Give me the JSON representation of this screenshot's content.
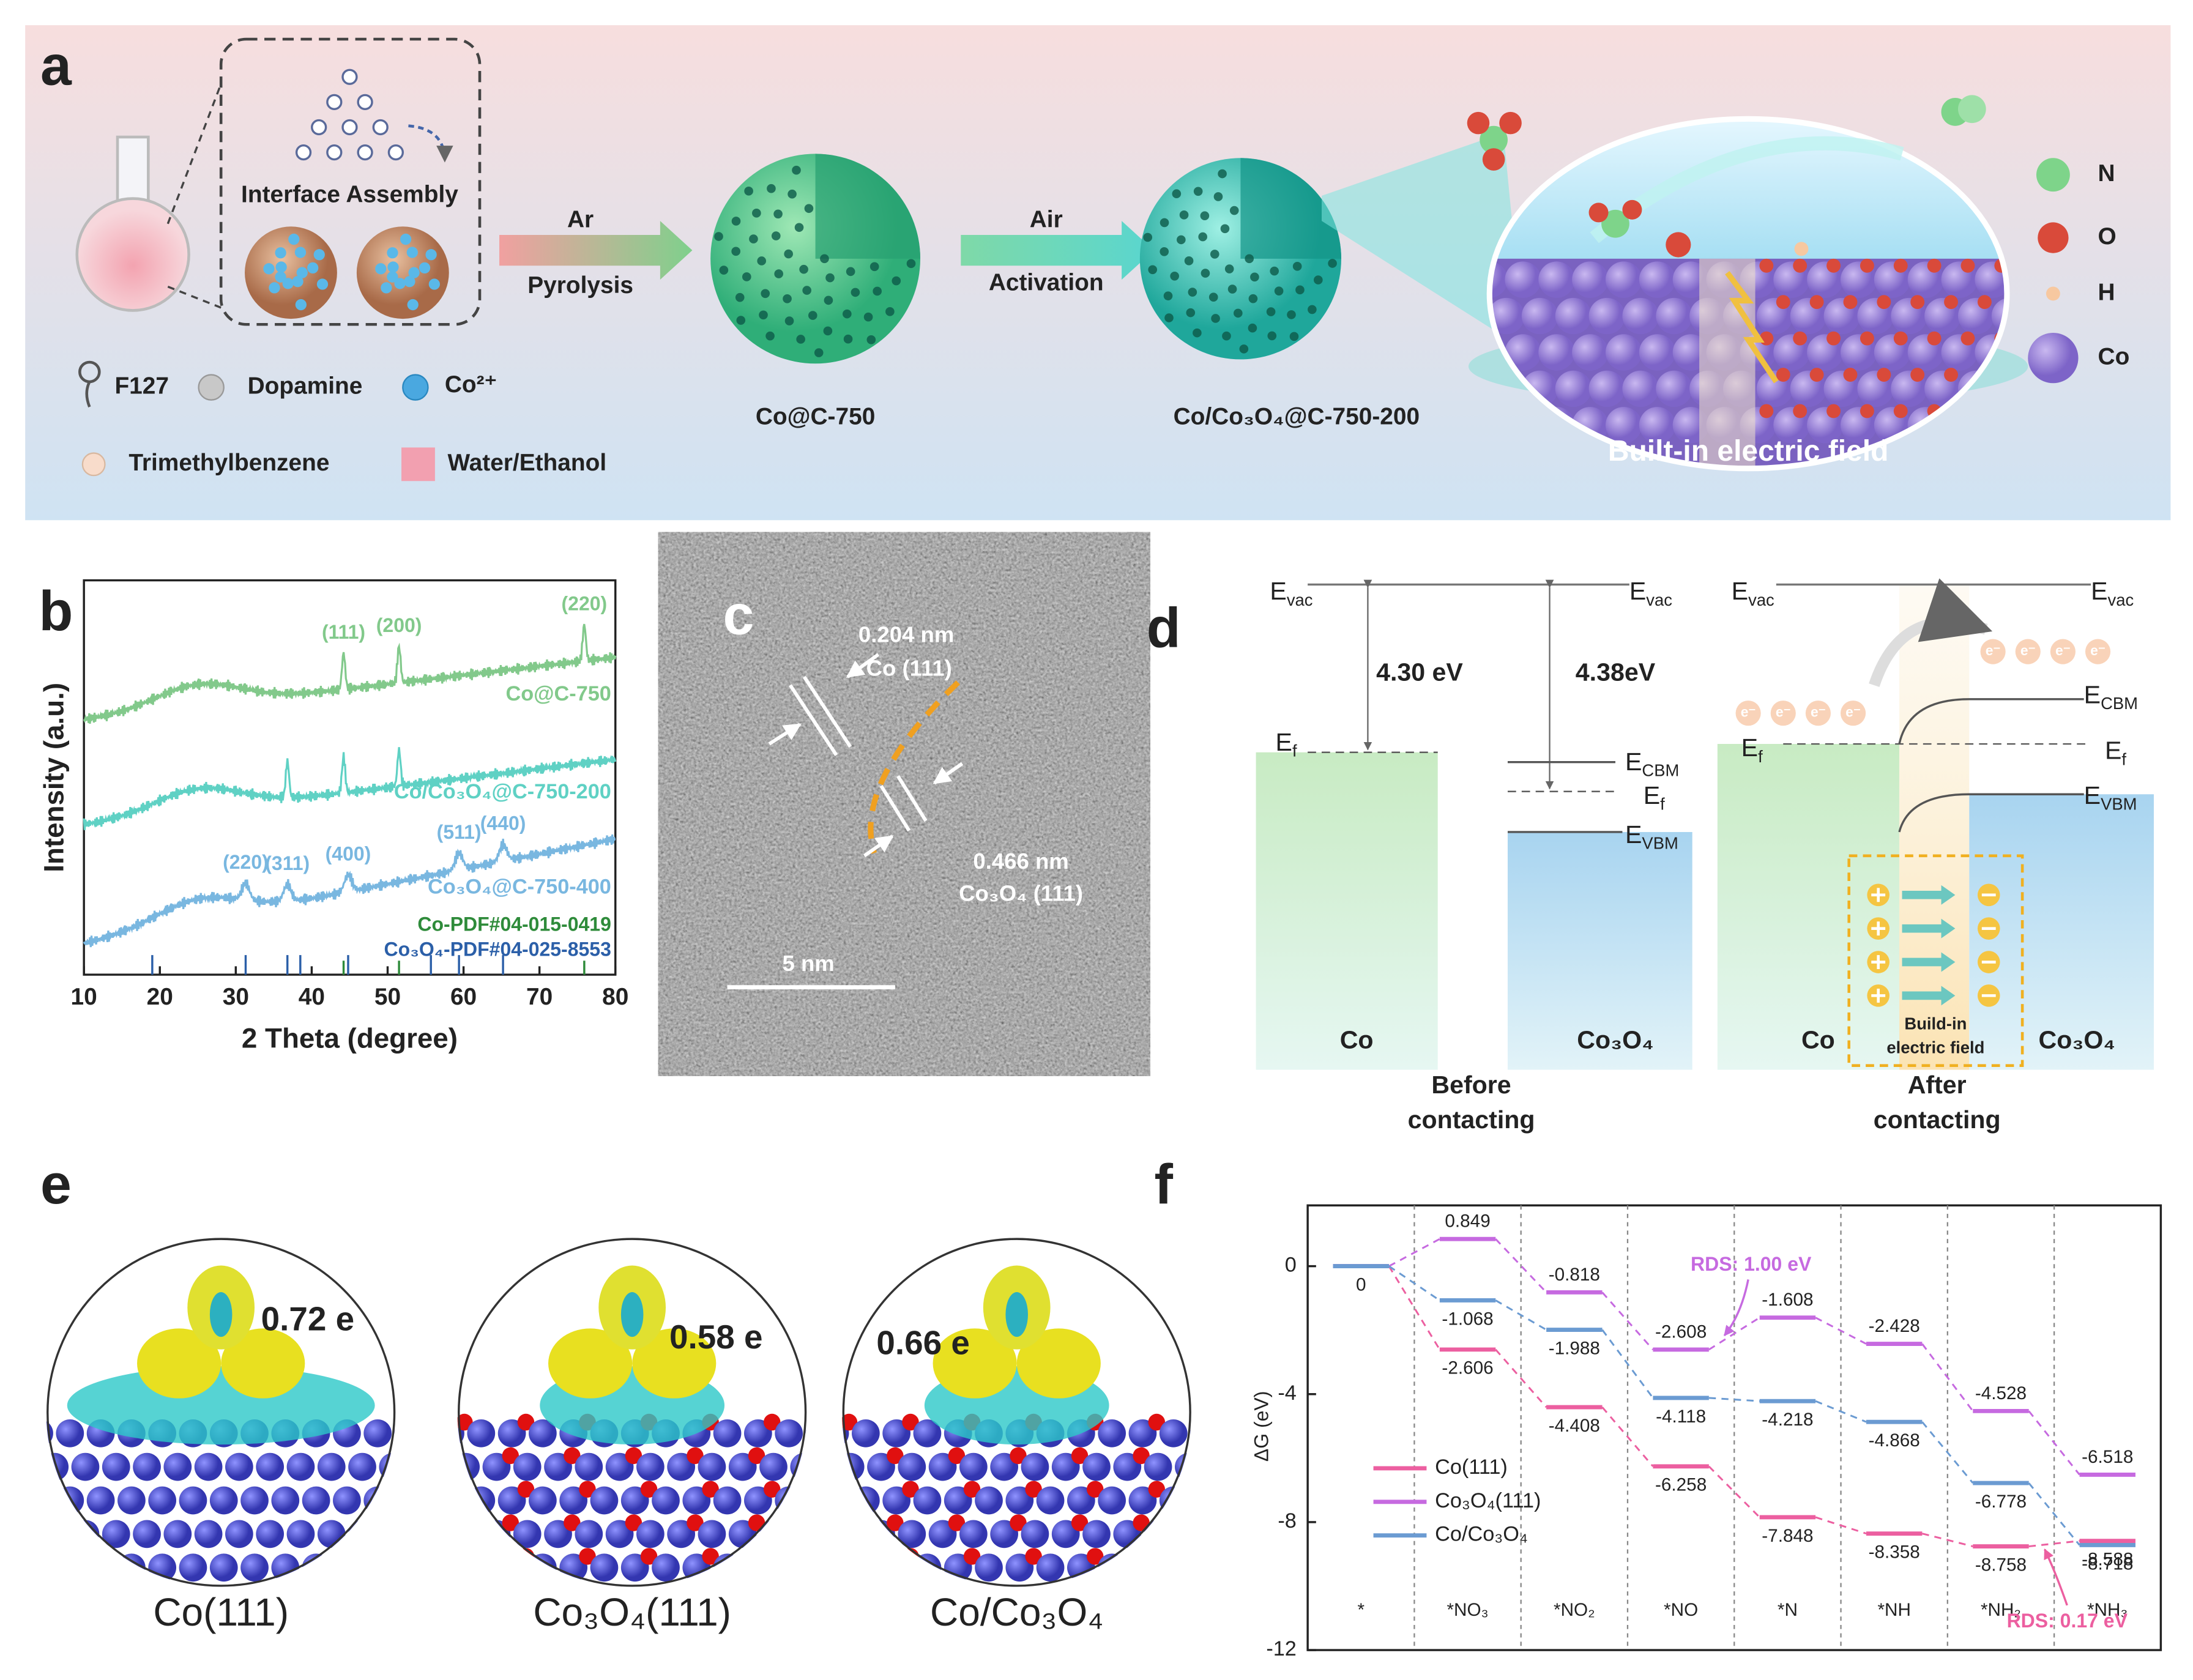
{
  "figure": {
    "panel_labels": [
      "a",
      "b",
      "c",
      "d",
      "e",
      "f"
    ],
    "a": {
      "assembly": "Interface Assembly",
      "step1": {
        "gas": "Ar",
        "process": "Pyrolysis"
      },
      "step2": {
        "gas": "Air",
        "process": "Activation"
      },
      "product1": "Co@C-750",
      "product2": "Co/Co₃O₄@C-750-200",
      "legend": [
        "F127",
        "Dopamine",
        "Co²⁺",
        "Trimethylbenzene",
        "Water/Ethanol"
      ],
      "field": "Built-in electric field",
      "atoms": [
        "N",
        "O",
        "H",
        "Co"
      ]
    },
    "c": {
      "co_spacing": "0.204 nm",
      "co_plane": "Co (111)",
      "oxide_spacing": "0.466 nm",
      "oxide_plane": "Co₃O₄ (111)",
      "scale": "5 nm"
    },
    "d": {
      "symbol": "E",
      "levels": {
        "vac": "vac",
        "f": "f",
        "cbm": "CBM",
        "vbm": "VBM"
      },
      "work_function_co": "4.30 eV",
      "work_function_oxide": "4.38eV",
      "metal": "Co",
      "oxide": "Co₃O₄",
      "electron": "e⁻",
      "before": [
        "Before",
        "contacting"
      ],
      "after": [
        "After",
        "contacting"
      ],
      "field": [
        "Build-in",
        "electric field"
      ]
    },
    "e": {
      "structures": [
        {
          "name": "Co(111)",
          "charge": "0.72 e"
        },
        {
          "name": "Co₃O₄(111)",
          "charge": "0.58 e"
        },
        {
          "name": "Co/Co₃O₄",
          "charge": "0.66 e"
        }
      ]
    }
  },
  "chart_data": [
    {
      "type": "line",
      "xlabel": "2 Theta (degree)",
      "ylabel": "Intensity (a.u.)",
      "xlim": [
        10,
        80
      ],
      "xticks": [
        10,
        20,
        30,
        40,
        50,
        60,
        70,
        80
      ],
      "series": [
        {
          "name": "Co@C-750",
          "color": "#82c98b",
          "peaks": [
            44.2,
            51.5,
            75.9
          ],
          "peak_labels": [
            "(111)",
            "(200)",
            "(220)"
          ]
        },
        {
          "name": "Co/Co₃O₄@C-750-200",
          "color": "#5fd1c4",
          "peaks": [
            44.2,
            51.5,
            36.8
          ]
        },
        {
          "name": "Co₃O₄@C-750-400",
          "color": "#79b7e0",
          "peaks": [
            31.3,
            36.8,
            44.8,
            59.4,
            65.2
          ],
          "peak_labels": [
            "(220)",
            "(311)",
            "(400)",
            "(511)",
            "(440)"
          ]
        }
      ],
      "references": [
        {
          "name": "Co-PDF#04-015-0419",
          "color": "#2e8b3a",
          "lines": [
            44.2,
            51.5,
            75.9
          ]
        },
        {
          "name": "Co₃O₄-PDF#04-025-8553",
          "color": "#2b5fa8",
          "lines": [
            19,
            31.3,
            36.8,
            38.5,
            44.8,
            55.7,
            59.4,
            65.2
          ]
        }
      ]
    },
    {
      "type": "step",
      "ylabel": "ΔG (eV)",
      "ylim": [
        -12,
        1.9
      ],
      "yticks": [
        0,
        -4,
        -8,
        -12
      ],
      "categories": [
        "*",
        "*NO₃",
        "*NO₂",
        "*NO",
        "*N",
        "*NH",
        "*NH₂",
        "*NH₃"
      ],
      "series": [
        {
          "name": "Co(111)",
          "color": "#ec5fa0",
          "values": [
            0,
            -2.606,
            -4.408,
            -6.258,
            -7.848,
            -8.358,
            -8.758,
            -8.588
          ]
        },
        {
          "name": "Co₃O₄(111)",
          "color": "#c66ae0",
          "values": [
            0,
            0.849,
            -0.818,
            -2.608,
            -1.608,
            -2.428,
            -4.528,
            -6.518
          ]
        },
        {
          "name": "Co/Co₃O₄",
          "color": "#6b9bd2",
          "values": [
            0,
            -1.068,
            -1.988,
            -4.118,
            -4.218,
            -4.868,
            -6.778,
            -8.718
          ]
        }
      ],
      "annotations": [
        "RDS: 1.00 eV",
        "RDS: 0.17 eV"
      ]
    }
  ]
}
